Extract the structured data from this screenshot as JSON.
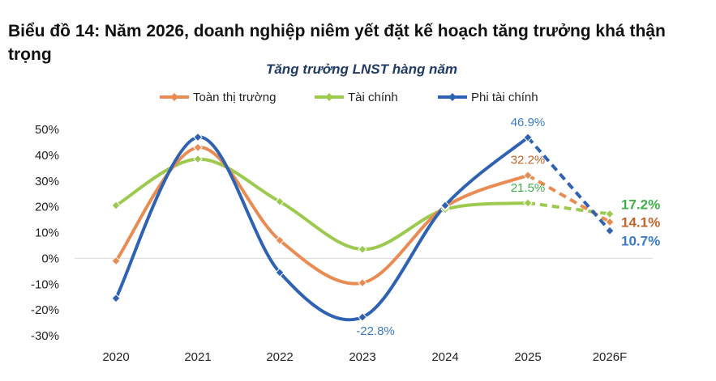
{
  "figure_title": "Biểu đồ 14: Năm 2026, doanh nghiệp niêm yết đặt kế hoạch tăng trưởng khá thận trọng",
  "chart_data": {
    "type": "line",
    "title": "Tăng trưởng LNST hàng năm",
    "categories": [
      "2020",
      "2021",
      "2022",
      "2023",
      "2024",
      "2025",
      "2026F"
    ],
    "ylim": [
      -30,
      50
    ],
    "yticks": [
      50,
      40,
      30,
      20,
      10,
      0,
      -10,
      -20,
      -30
    ],
    "ytick_labels": [
      "50%",
      "40%",
      "30%",
      "20%",
      "10%",
      "0%",
      "-10%",
      "-20%",
      "-30%"
    ],
    "grid": false,
    "legend_position": "top",
    "series": [
      {
        "name": "Toàn thị trường",
        "color": "#e98b52",
        "label_color": "#c0652a",
        "values": [
          -1,
          43,
          7,
          -9.5,
          20,
          32.2,
          14.1
        ],
        "projection_from_index": 5,
        "labels": [
          {
            "index": 5,
            "text": "32.2%",
            "bold": false
          },
          {
            "index": 6,
            "text": "14.1%",
            "bold": true
          }
        ]
      },
      {
        "name": "Tài chính",
        "color": "#9cca4f",
        "label_color": "#3fae48",
        "values": [
          20.5,
          38.5,
          22,
          3.5,
          19,
          21.5,
          17.2
        ],
        "projection_from_index": 5,
        "labels": [
          {
            "index": 5,
            "text": "21.5%",
            "bold": false
          },
          {
            "index": 6,
            "text": "17.2%",
            "bold": true
          }
        ]
      },
      {
        "name": "Phi tài chính",
        "color": "#2f62b3",
        "label_color": "#3a7cc4",
        "values": [
          -15.5,
          47,
          -5.5,
          -22.8,
          20.5,
          46.9,
          10.7
        ],
        "projection_from_index": 5,
        "labels": [
          {
            "index": 3,
            "text": "-22.8%",
            "bold": false
          },
          {
            "index": 5,
            "text": "46.9%",
            "bold": false
          },
          {
            "index": 6,
            "text": "10.7%",
            "bold": true
          }
        ]
      }
    ]
  }
}
